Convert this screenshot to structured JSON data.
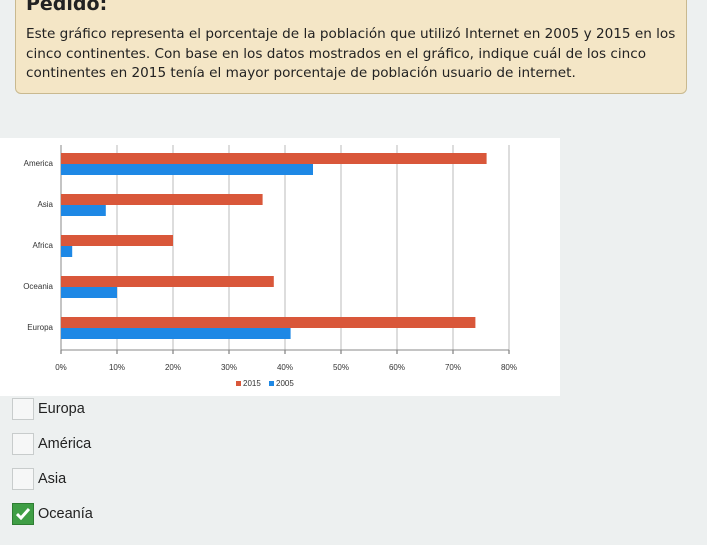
{
  "header": {
    "title": "Pedido:"
  },
  "prompt": "Este gráfico representa el porcentaje de la población que utilizó Internet en 2005 y 2015 en los cinco continentes. Con base en los datos mostrados en el gráfico, indique cuál de los cinco continentes en 2015 tenía el mayor porcentaje de población usuario de internet.",
  "chart_data": {
    "type": "hbar",
    "categories": [
      "America",
      "Asia",
      "Africa",
      "Oceania",
      "Europa"
    ],
    "series": [
      {
        "name": "2015",
        "color": "#d9573a",
        "values": [
          76,
          36,
          20,
          38,
          74
        ]
      },
      {
        "name": "2005",
        "color": "#1e88e5",
        "values": [
          45,
          8,
          2,
          10,
          41
        ]
      }
    ],
    "xlim": [
      0,
      80
    ],
    "xticks": [
      {
        "value": 0,
        "label": "0%"
      },
      {
        "value": 10,
        "label": "10%"
      },
      {
        "value": 20,
        "label": "20%"
      },
      {
        "value": 30,
        "label": "30%"
      },
      {
        "value": 40,
        "label": "40%"
      },
      {
        "value": 50,
        "label": "50%"
      },
      {
        "value": 60,
        "label": "60%"
      },
      {
        "value": 70,
        "label": "70%"
      },
      {
        "value": 80,
        "label": "80%"
      }
    ],
    "grid": true,
    "legend": "bottom"
  },
  "options": [
    {
      "label": "Europa",
      "checked": false
    },
    {
      "label": "América",
      "checked": false
    },
    {
      "label": "Asia",
      "checked": false
    },
    {
      "label": "Oceanía",
      "checked": true
    }
  ]
}
